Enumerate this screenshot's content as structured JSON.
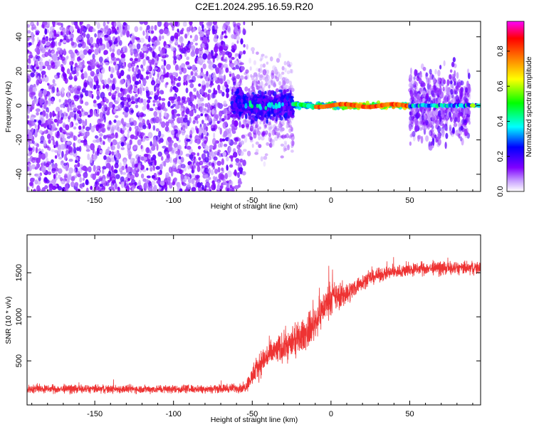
{
  "title": "C2E1.2024.295.16.59.R20",
  "chart_data": [
    {
      "type": "heatmap",
      "xlabel": "Height of straight line (km)",
      "ylabel": "Frequency (Hz)",
      "xlim": [
        -193,
        95
      ],
      "ylim": [
        -50,
        49
      ],
      "xticks": [
        -150,
        -100,
        -50,
        0,
        50
      ],
      "yticks": [
        -40,
        -20,
        0,
        20,
        40
      ],
      "grid": false,
      "colorbar": {
        "label": "Normalized spectral amplitude",
        "range": [
          0,
          0.97
        ],
        "ticks": [
          0.0,
          0.2,
          0.4,
          0.6,
          0.8
        ],
        "colormap": [
          "#ffffff",
          "#8000ff",
          "#0000ff",
          "#00ffff",
          "#00ff00",
          "#ffff00",
          "#ff8000",
          "#ff0000",
          "#ff00ff"
        ]
      },
      "regions": [
        {
          "x": [
            -193,
            -55
          ],
          "f": [
            -50,
            49
          ],
          "description_amplitude": 0.1
        },
        {
          "x": [
            -55,
            -24
          ],
          "f": [
            -12,
            12
          ],
          "description_amplitude": 0.25
        },
        {
          "x": [
            -24,
            50
          ],
          "f": [
            -2,
            2
          ],
          "description_amplitude": 0.85
        },
        {
          "x": [
            50,
            95
          ],
          "f": [
            -3,
            3
          ],
          "description_amplitude": 0.4
        }
      ]
    },
    {
      "type": "line",
      "xlabel": "Height of straight line (km)",
      "ylabel": "SNR (10 * v/v)",
      "xlim": [
        -193,
        95
      ],
      "ylim": [
        0,
        1930
      ],
      "xticks": [
        -150,
        -100,
        -50,
        0,
        50
      ],
      "yticks": [
        500,
        1000,
        1500
      ],
      "grid": false,
      "series": [
        {
          "color": "#ee3333",
          "x": [
            -193,
            -150,
            -100,
            -70,
            -55,
            -50,
            -45,
            -40,
            -35,
            -30,
            -25,
            -20,
            -15,
            -10,
            -5,
            0,
            5,
            10,
            15,
            20,
            25,
            30,
            35,
            40,
            50,
            60,
            70,
            80,
            95
          ],
          "y": [
            180,
            180,
            180,
            185,
            195,
            320,
            470,
            560,
            610,
            660,
            700,
            760,
            830,
            940,
            1100,
            1220,
            1230,
            1260,
            1330,
            1400,
            1440,
            1470,
            1490,
            1510,
            1530,
            1550,
            1550,
            1550,
            1555
          ],
          "noise_amplitude": [
            70,
            70,
            70,
            70,
            80,
            170,
            220,
            230,
            240,
            250,
            260,
            260,
            280,
            290,
            280,
            260,
            230,
            190,
            150,
            130,
            120,
            110,
            110,
            110,
            110,
            110,
            110,
            110,
            110
          ]
        }
      ]
    }
  ]
}
